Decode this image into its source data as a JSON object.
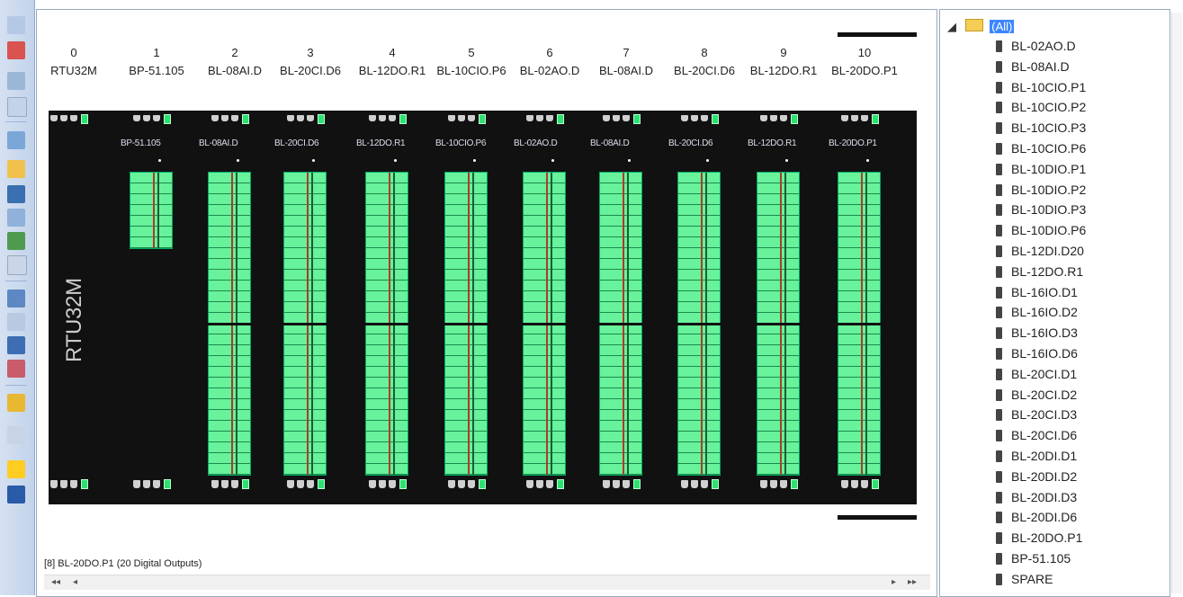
{
  "canvas": {
    "slot_numbers": [
      "0",
      "1",
      "2",
      "3",
      "4",
      "5",
      "6",
      "7",
      "8",
      "9",
      "10"
    ],
    "slot_names": [
      "RTU32M",
      "BP-51.105",
      "BL-08AI.D",
      "BL-20CI.D6",
      "BL-12DO.R1",
      "BL-10CIO.P6",
      "BL-02AO.D",
      "BL-08AI.D",
      "BL-20CI.D6",
      "BL-12DO.R1",
      "BL-20DO.P1"
    ],
    "module_labels": [
      "BP-51.105",
      "BL-08AI.D",
      "BL-20CI.D6",
      "BL-12DO.R1",
      "BL-10CIO.P6",
      "BL-02AO.D",
      "BL-08AI.D",
      "BL-20CI.D6",
      "BL-12DO.R1",
      "BL-20DO.P1"
    ],
    "cpu_label": "RTU32M",
    "status_text": "[8] BL-20DO.P1 (20 Digital Outputs)",
    "scroll_first": "◂◂",
    "scroll_prev": "◂",
    "scroll_next": "▸",
    "scroll_last": "▸▸",
    "rack_color": "#111111",
    "terminal_color": "#2ee070"
  },
  "tree": {
    "root_label": "(All)",
    "items": [
      "BL-02AO.D",
      "BL-08AI.D",
      "BL-10CIO.P1",
      "BL-10CIO.P2",
      "BL-10CIO.P3",
      "BL-10CIO.P6",
      "BL-10DIO.P1",
      "BL-10DIO.P2",
      "BL-10DIO.P3",
      "BL-10DIO.P6",
      "BL-12DI.D20",
      "BL-12DO.R1",
      "BL-16IO.D1",
      "BL-16IO.D2",
      "BL-16IO.D3",
      "BL-16IO.D6",
      "BL-20CI.D1",
      "BL-20CI.D2",
      "BL-20CI.D3",
      "BL-20CI.D6",
      "BL-20DI.D1",
      "BL-20DI.D2",
      "BL-20DI.D3",
      "BL-20DI.D6",
      "BL-20DO.P1",
      "BP-51.105",
      "SPARE"
    ]
  }
}
